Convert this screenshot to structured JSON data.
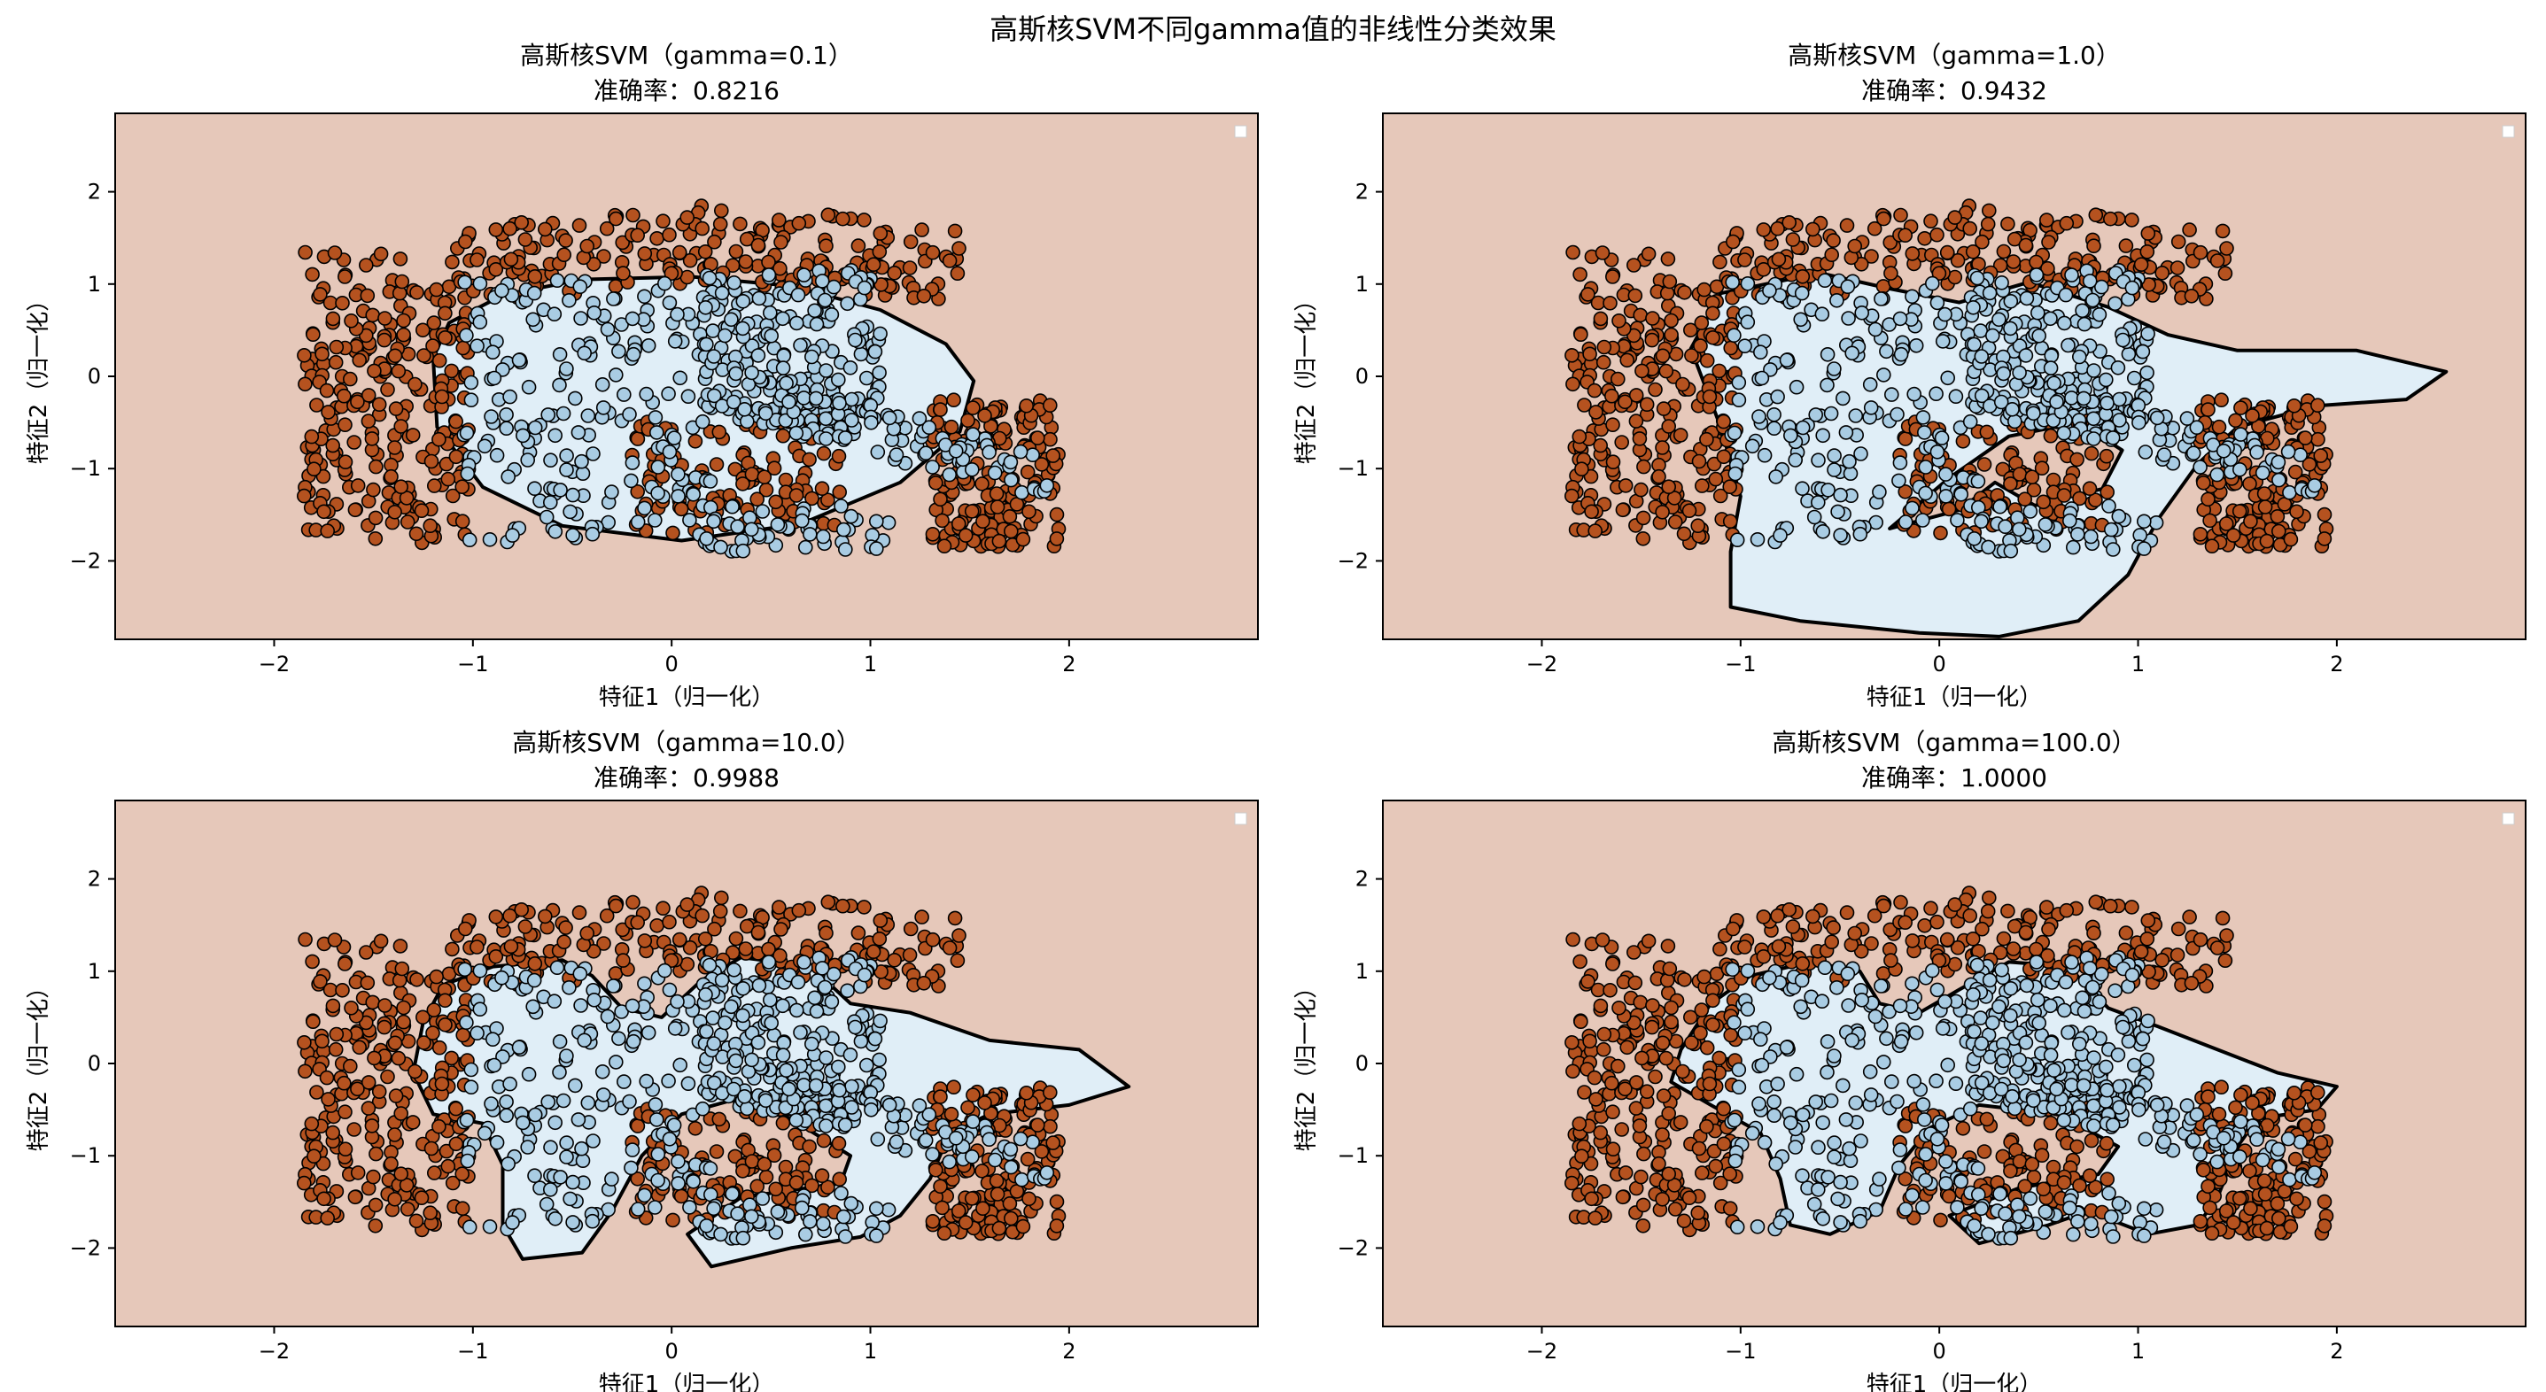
{
  "figure_title": "高斯核SVM不同gamma值的非线性分类效果",
  "colors": {
    "background_region": "#E6C8BA",
    "inner_region": "#E0EEF7",
    "class0_point": "#A9CCE3",
    "class1_point": "#B5521F",
    "boundary": "#000000"
  },
  "chart_data": [
    {
      "type": "scatter",
      "title": "高斯核SVM（gamma=0.1）",
      "subtitle": "准确率：0.8216",
      "xlabel": "特征1（归一化）",
      "ylabel": "特征2（归一化）",
      "xlim": [
        -2.8,
        2.95
      ],
      "ylim": [
        -2.85,
        2.85
      ],
      "xticks": [
        "−2",
        "−1",
        "0",
        "1",
        "2"
      ],
      "yticks": [
        "−2",
        "−1",
        "0",
        "1",
        "2"
      ],
      "legend": "top-right (empty)",
      "boundary": [
        [
          -1.2,
          0.2
        ],
        [
          -1.12,
          0.58
        ],
        [
          -0.85,
          0.88
        ],
        [
          -0.45,
          1.05
        ],
        [
          0.1,
          1.08
        ],
        [
          0.6,
          0.98
        ],
        [
          1.05,
          0.72
        ],
        [
          1.38,
          0.35
        ],
        [
          1.52,
          -0.05
        ],
        [
          1.45,
          -0.6
        ],
        [
          1.15,
          -1.15
        ],
        [
          0.65,
          -1.6
        ],
        [
          0.05,
          -1.78
        ],
        [
          -0.55,
          -1.62
        ],
        [
          -0.95,
          -1.2
        ],
        [
          -1.18,
          -0.55
        ]
      ],
      "gamma": 0.1,
      "accuracy": 0.8216
    },
    {
      "type": "scatter",
      "title": "高斯核SVM（gamma=1.0）",
      "subtitle": "准确率：0.9432",
      "xlabel": "特征1（归一化）",
      "ylabel": "特征2（归一化）",
      "xlim": [
        -2.8,
        2.95
      ],
      "ylim": [
        -2.85,
        2.85
      ],
      "xticks": [
        "−2",
        "−1",
        "0",
        "1",
        "2"
      ],
      "yticks": [
        "−2",
        "−1",
        "0",
        "1",
        "2"
      ],
      "legend": "top-right (empty)",
      "boundary": [
        [
          -1.25,
          0.3
        ],
        [
          -1.1,
          0.9
        ],
        [
          -0.6,
          1.12
        ],
        [
          -0.25,
          0.95
        ],
        [
          0.1,
          0.8
        ],
        [
          0.45,
          1.02
        ],
        [
          0.85,
          0.75
        ],
        [
          1.15,
          0.45
        ],
        [
          1.5,
          0.28
        ],
        [
          2.1,
          0.28
        ],
        [
          2.55,
          0.05
        ],
        [
          2.35,
          -0.25
        ],
        [
          1.9,
          -0.32
        ],
        [
          1.5,
          -0.55
        ],
        [
          1.3,
          -0.95
        ],
        [
          1.1,
          -1.55
        ],
        [
          0.95,
          -2.15
        ],
        [
          0.7,
          -2.65
        ],
        [
          0.3,
          -2.82
        ],
        [
          -0.1,
          -2.78
        ],
        [
          -0.7,
          -2.65
        ],
        [
          -1.05,
          -2.5
        ],
        [
          -1.05,
          -1.9
        ],
        [
          -1.0,
          -1.3
        ],
        [
          -1.1,
          -0.55
        ]
      ],
      "hole": [
        [
          -0.25,
          -1.65
        ],
        [
          0.05,
          -1.1
        ],
        [
          0.35,
          -0.65
        ],
        [
          0.7,
          -0.5
        ],
        [
          0.92,
          -0.8
        ],
        [
          0.82,
          -1.22
        ],
        [
          0.48,
          -1.4
        ],
        [
          0.28,
          -1.15
        ],
        [
          0.1,
          -1.45
        ]
      ],
      "gamma": 1.0,
      "accuracy": 0.9432
    },
    {
      "type": "scatter",
      "title": "高斯核SVM（gamma=10.0）",
      "subtitle": "准确率：0.9988",
      "xlabel": "特征1（归一化）",
      "ylabel": "特征2（归一化）",
      "xlim": [
        -2.8,
        2.95
      ],
      "ylim": [
        -2.85,
        2.85
      ],
      "xticks": [
        "−2",
        "−1",
        "0",
        "1",
        "2"
      ],
      "yticks": [
        "−2",
        "−1",
        "0",
        "1",
        "2"
      ],
      "legend": "top-right (empty)",
      "boundary": [
        [
          -1.25,
          0.45
        ],
        [
          -1.15,
          0.85
        ],
        [
          -0.9,
          1.05
        ],
        [
          -0.55,
          1.12
        ],
        [
          -0.4,
          0.95
        ],
        [
          -0.25,
          0.6
        ],
        [
          -0.05,
          0.5
        ],
        [
          0.15,
          0.9
        ],
        [
          0.35,
          1.15
        ],
        [
          0.7,
          1.05
        ],
        [
          0.9,
          0.65
        ],
        [
          1.2,
          0.55
        ],
        [
          1.6,
          0.25
        ],
        [
          2.05,
          0.15
        ],
        [
          2.3,
          -0.25
        ],
        [
          2.0,
          -0.45
        ],
        [
          1.6,
          -0.55
        ],
        [
          1.4,
          -0.75
        ],
        [
          1.3,
          -1.25
        ],
        [
          1.15,
          -1.65
        ],
        [
          0.95,
          -1.88
        ],
        [
          0.6,
          -2.0
        ],
        [
          0.2,
          -2.2
        ],
        [
          0.08,
          -1.85
        ],
        [
          0.35,
          -1.45
        ],
        [
          0.85,
          -1.3
        ],
        [
          0.9,
          -1.0
        ],
        [
          0.6,
          -0.6
        ],
        [
          0.3,
          -0.4
        ],
        [
          0.05,
          -0.55
        ],
        [
          -0.15,
          -1.0
        ],
        [
          -0.3,
          -1.6
        ],
        [
          -0.45,
          -2.05
        ],
        [
          -0.75,
          -2.12
        ],
        [
          -0.85,
          -1.75
        ],
        [
          -0.85,
          -1.1
        ],
        [
          -0.95,
          -0.65
        ],
        [
          -1.2,
          -0.55
        ],
        [
          -1.3,
          -0.1
        ]
      ],
      "gamma": 10.0,
      "accuracy": 0.9988
    },
    {
      "type": "scatter",
      "title": "高斯核SVM（gamma=100.0）",
      "subtitle": "准确率：1.0000",
      "xlabel": "特征1（归一化）",
      "ylabel": "特征2（归一化）",
      "xlim": [
        -2.8,
        2.95
      ],
      "ylim": [
        -2.85,
        2.85
      ],
      "xticks": [
        "−2",
        "−1",
        "0",
        "1",
        "2"
      ],
      "yticks": [
        "−2",
        "−1",
        "0",
        "1",
        "2"
      ],
      "legend": "top-right (empty)",
      "boundary": [
        [
          -1.3,
          0.15
        ],
        [
          -1.15,
          0.65
        ],
        [
          -0.95,
          0.95
        ],
        [
          -0.65,
          1.1
        ],
        [
          -0.4,
          1.0
        ],
        [
          -0.3,
          0.65
        ],
        [
          -0.1,
          0.55
        ],
        [
          0.1,
          0.8
        ],
        [
          0.35,
          1.1
        ],
        [
          0.65,
          1.05
        ],
        [
          0.85,
          0.6
        ],
        [
          1.1,
          0.4
        ],
        [
          1.4,
          0.15
        ],
        [
          1.7,
          -0.1
        ],
        [
          2.0,
          -0.25
        ],
        [
          1.9,
          -0.5
        ],
        [
          1.6,
          -0.6
        ],
        [
          1.5,
          -0.9
        ],
        [
          1.4,
          -1.45
        ],
        [
          1.3,
          -1.75
        ],
        [
          1.05,
          -1.85
        ],
        [
          0.75,
          -1.6
        ],
        [
          0.55,
          -1.75
        ],
        [
          0.2,
          -1.95
        ],
        [
          0.05,
          -1.65
        ],
        [
          0.4,
          -1.35
        ],
        [
          0.8,
          -1.2
        ],
        [
          0.9,
          -0.9
        ],
        [
          0.6,
          -0.55
        ],
        [
          0.2,
          -0.45
        ],
        [
          -0.05,
          -0.7
        ],
        [
          -0.2,
          -1.1
        ],
        [
          -0.3,
          -1.6
        ],
        [
          -0.55,
          -1.85
        ],
        [
          -0.75,
          -1.75
        ],
        [
          -0.8,
          -1.25
        ],
        [
          -0.9,
          -0.75
        ],
        [
          -1.15,
          -0.45
        ],
        [
          -1.35,
          -0.2
        ]
      ],
      "gamma": 100.0,
      "accuracy": 1.0
    }
  ]
}
